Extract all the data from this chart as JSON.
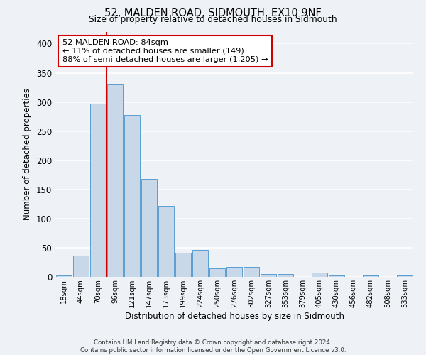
{
  "title": "52, MALDEN ROAD, SIDMOUTH, EX10 9NF",
  "subtitle": "Size of property relative to detached houses in Sidmouth",
  "xlabel": "Distribution of detached houses by size in Sidmouth",
  "ylabel": "Number of detached properties",
  "bin_labels": [
    "18sqm",
    "44sqm",
    "70sqm",
    "96sqm",
    "121sqm",
    "147sqm",
    "173sqm",
    "199sqm",
    "224sqm",
    "250sqm",
    "276sqm",
    "302sqm",
    "327sqm",
    "353sqm",
    "379sqm",
    "405sqm",
    "430sqm",
    "456sqm",
    "482sqm",
    "508sqm",
    "533sqm"
  ],
  "bar_heights": [
    3,
    37,
    297,
    330,
    278,
    168,
    122,
    42,
    46,
    15,
    17,
    17,
    5,
    5,
    0,
    7,
    2,
    0,
    3,
    0,
    2
  ],
  "bar_color": "#c8d8e8",
  "bar_edge_color": "#5a9fd4",
  "vline_color": "#cc0000",
  "annotation_text": "52 MALDEN ROAD: 84sqm\n← 11% of detached houses are smaller (149)\n88% of semi-detached houses are larger (1,205) →",
  "annotation_box_color": "#ffffff",
  "annotation_box_edge": "#cc0000",
  "ylim": [
    0,
    420
  ],
  "yticks": [
    0,
    50,
    100,
    150,
    200,
    250,
    300,
    350,
    400
  ],
  "footer_text": "Contains HM Land Registry data © Crown copyright and database right 2024.\nContains public sector information licensed under the Open Government Licence v3.0.",
  "background_color": "#eef2f7",
  "grid_color": "#ffffff"
}
